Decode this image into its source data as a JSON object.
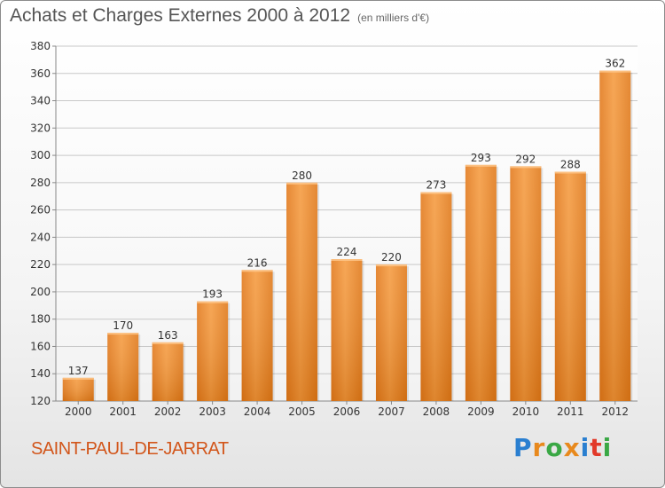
{
  "title": "Achats et Charges Externes 2000 à 2012",
  "subtitle": "(en milliers d'€)",
  "town": "SAINT-PAUL-DE-JARRAT",
  "logo": {
    "letters": [
      "P",
      "r",
      "o",
      "x",
      "i",
      "t",
      "i"
    ],
    "colors": [
      "#2a7fd0",
      "#e8891d",
      "#3aa845",
      "#e8891d",
      "#2a7fd0",
      "#e23a2a",
      "#3aa845"
    ]
  },
  "colors": {
    "bar": "#f08c2c",
    "bar_dark": "#d56e14",
    "grid": "#c8c8c8"
  },
  "chart_data": {
    "type": "bar",
    "title": "Achats et Charges Externes 2000 à 2012",
    "xlabel": "",
    "ylabel": "",
    "categories": [
      "2000",
      "2001",
      "2002",
      "2003",
      "2004",
      "2005",
      "2006",
      "2007",
      "2008",
      "2009",
      "2010",
      "2011",
      "2012"
    ],
    "values": [
      137,
      170,
      163,
      193,
      216,
      280,
      224,
      220,
      273,
      293,
      292,
      288,
      362
    ],
    "ylim": [
      120,
      380
    ],
    "yticks": [
      120,
      140,
      160,
      180,
      200,
      220,
      240,
      260,
      280,
      300,
      320,
      340,
      360,
      380
    ],
    "grid": true
  }
}
